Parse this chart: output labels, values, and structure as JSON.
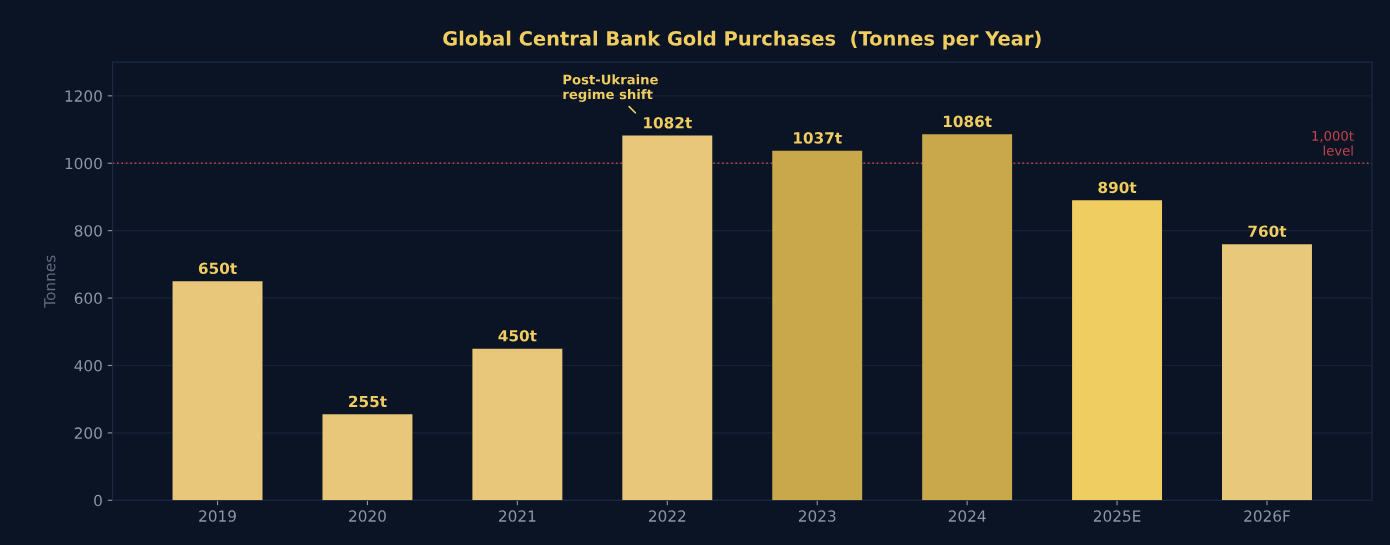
{
  "chart_data": {
    "type": "bar",
    "title": "Global Central Bank Gold Purchases  (Tonnes per Year)",
    "ylabel": "Tonnes",
    "categories": [
      "2019",
      "2020",
      "2021",
      "2022",
      "2023",
      "2024",
      "2025E",
      "2026F"
    ],
    "values": [
      650,
      255,
      450,
      1082,
      1037,
      1086,
      890,
      760
    ],
    "colors": [
      "#e8c77a",
      "#e8c77a",
      "#e8c77a",
      "#e8c77a",
      "#c9a84c",
      "#c9a84c",
      "#f0cd60",
      "#e8c87b"
    ],
    "value_labels": [
      "650t",
      "255t",
      "450t",
      "1082t",
      "1037t",
      "1086t",
      "890t",
      "760t"
    ],
    "ylim": [
      0,
      1300
    ],
    "yticks": [
      0,
      200,
      400,
      600,
      800,
      1000,
      1200
    ],
    "grid": "y",
    "ref_lines": [
      {
        "axis": "y",
        "value": 1000,
        "label": "1,000t\nlevel",
        "color": "#c0444c",
        "line_style": "dotted"
      }
    ],
    "annotations": [
      {
        "text": "Post-Ukraine\nregime shift",
        "x": "2022",
        "y": 1082
      }
    ]
  }
}
